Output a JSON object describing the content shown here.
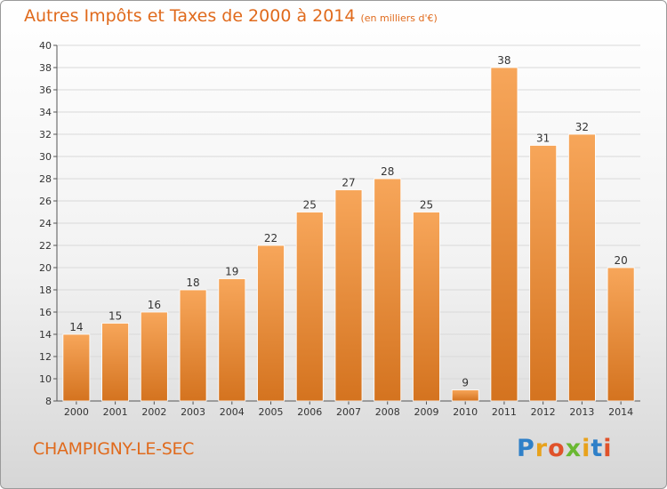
{
  "header": {
    "title": "Autres Impôts et Taxes de 2000 à 2014",
    "subtitle": "(en milliers d'€)"
  },
  "footer": {
    "commune": "CHAMPIGNY-LE-SEC",
    "logo": {
      "text": "Proxiti",
      "colors": [
        "#2f80c8",
        "#e8a21c",
        "#e0522a",
        "#6ab832",
        "#e8a21c",
        "#2f80c8",
        "#e0522a"
      ]
    }
  },
  "colors": {
    "bar_light": "#f7a65a",
    "bar_dark": "#d4731f",
    "title": "#e06a1c",
    "grid": "#d9d9d9"
  },
  "chart_data": {
    "type": "bar",
    "title": "Autres Impôts et Taxes de 2000 à 2014",
    "subtitle": "(en milliers d'€)",
    "categories": [
      "2000",
      "2001",
      "2002",
      "2003",
      "2004",
      "2005",
      "2006",
      "2007",
      "2008",
      "2009",
      "2010",
      "2011",
      "2012",
      "2013",
      "2014"
    ],
    "values": [
      14,
      15,
      16,
      18,
      19,
      22,
      25,
      27,
      28,
      25,
      9,
      38,
      31,
      32,
      20
    ],
    "ylim": [
      8,
      40
    ],
    "yticks": [
      8,
      10,
      12,
      14,
      16,
      18,
      20,
      22,
      24,
      26,
      28,
      30,
      32,
      34,
      36,
      38,
      40
    ],
    "grid": true,
    "data_labels": true
  }
}
